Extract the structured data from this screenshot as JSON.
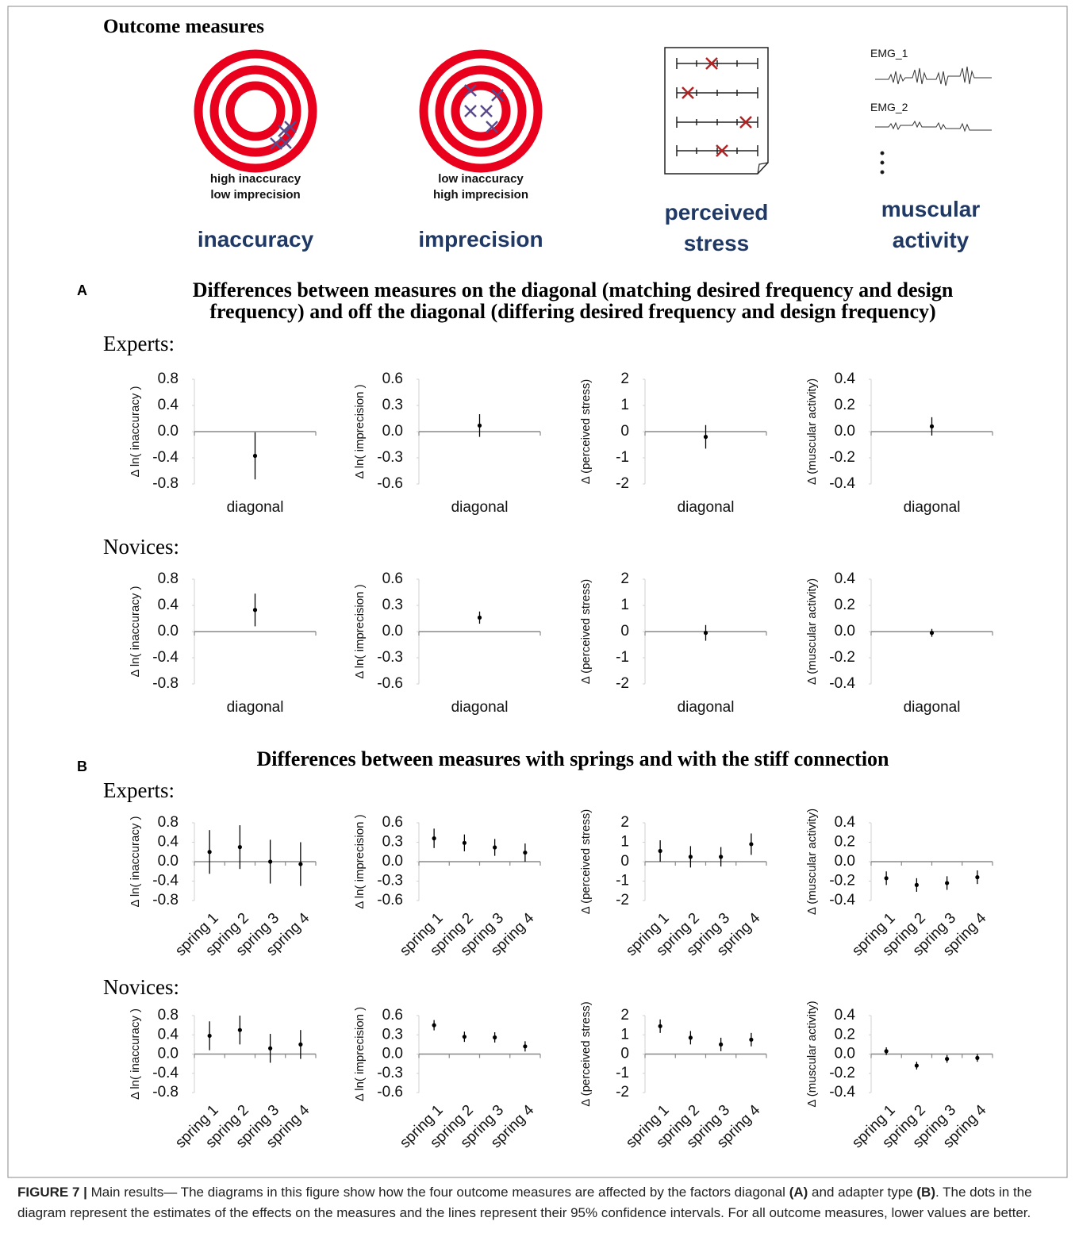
{
  "figure": {
    "outcome": {
      "title": "Outcome measures",
      "notes": [
        [
          "high inaccuracy",
          "low imprecision"
        ],
        [
          "low inaccuracy",
          "high imprecision"
        ]
      ],
      "labels": [
        "inaccuracy",
        "imprecision",
        "perceived stress",
        "muscular activity"
      ],
      "emg": [
        "EMG_1",
        "EMG_2"
      ]
    },
    "sections": [
      {
        "letter": "A",
        "title": "Differences between measures on the diagonal (matching desired frequency and design frequency) and off the diagonal (differing desired frequency and design frequency)",
        "groups": [
          "Experts:",
          "Novices:"
        ]
      },
      {
        "letter": "B",
        "title": "Differences between measures with springs and with the stiff connection",
        "groups": [
          "Experts:",
          "Novices:"
        ]
      }
    ],
    "caption": [
      "FIGURE 7 |",
      "Main results— The diagrams in this figure show how the four outcome measures are affected by the factors diagonal",
      "(A)",
      "and adapter type",
      "(B)",
      ". The dots in the diagram represent the estimates of the effects on the measures and the lines represent their 95% confidence intervals. For all outcome measures, lower values are better."
    ]
  },
  "chart_data": [
    {
      "type": "errorbar",
      "ylabel": "Δ ln( inaccuracy )",
      "categories": [
        "diagonal"
      ],
      "values": [
        -0.37
      ],
      "errors": [
        0.36
      ],
      "color": "#000000",
      "ylim": [
        -0.8,
        0.8
      ],
      "yticks": [
        -0.8,
        -0.4,
        {
          "value": 0,
          "label": "0.0"
        },
        0.4,
        0.8
      ]
    },
    {
      "type": "errorbar",
      "ylabel": "Δ ln( imprecision )",
      "categories": [
        "diagonal"
      ],
      "values": [
        0.07
      ],
      "errors": [
        0.13
      ],
      "color": "#000000",
      "ylim": [
        -0.6,
        0.6
      ],
      "yticks": [
        -0.6,
        -0.3,
        {
          "value": 0,
          "label": "0.0"
        },
        0.3,
        0.6
      ]
    },
    {
      "type": "errorbar",
      "ylabel": "Δ (perceived stress)",
      "categories": [
        "diagonal"
      ],
      "values": [
        -0.2
      ],
      "errors": [
        0.45
      ],
      "color": "#000000",
      "ylim": [
        -2,
        2
      ],
      "yticks": [
        -2,
        -1,
        0,
        1,
        2
      ]
    },
    {
      "type": "errorbar",
      "ylabel": "Δ (muscular activity)",
      "categories": [
        "diagonal"
      ],
      "values": [
        0.04
      ],
      "errors": [
        0.07
      ],
      "color": "#000000",
      "ylim": [
        -0.4,
        0.4
      ],
      "yticks": [
        -0.4,
        -0.2,
        {
          "value": 0,
          "label": "0.0"
        },
        0.2,
        0.4
      ]
    },
    {
      "type": "errorbar",
      "ylabel": "Δ ln( inaccuracy )",
      "categories": [
        "diagonal"
      ],
      "values": [
        0.33
      ],
      "errors": [
        0.25
      ],
      "color": "#000000",
      "ylim": [
        -0.8,
        0.8
      ],
      "yticks": [
        -0.8,
        -0.4,
        {
          "value": 0,
          "label": "0.0"
        },
        0.4,
        0.8
      ]
    },
    {
      "type": "errorbar",
      "ylabel": "Δ ln( imprecision )",
      "categories": [
        "diagonal"
      ],
      "values": [
        0.16
      ],
      "errors": [
        0.07
      ],
      "color": "#000000",
      "ylim": [
        -0.6,
        0.6
      ],
      "yticks": [
        -0.6,
        -0.3,
        {
          "value": 0,
          "label": "0.0"
        },
        0.3,
        0.6
      ]
    },
    {
      "type": "errorbar",
      "ylabel": "Δ (perceived stress)",
      "categories": [
        "diagonal"
      ],
      "values": [
        -0.05
      ],
      "errors": [
        0.3
      ],
      "color": "#000000",
      "ylim": [
        -2,
        2
      ],
      "yticks": [
        -2,
        -1,
        0,
        1,
        2
      ]
    },
    {
      "type": "errorbar",
      "ylabel": "Δ (muscular activity)",
      "categories": [
        "diagonal"
      ],
      "values": [
        -0.01
      ],
      "errors": [
        0.03
      ],
      "color": "#000000",
      "ylim": [
        -0.4,
        0.4
      ],
      "yticks": [
        -0.4,
        -0.2,
        {
          "value": 0,
          "label": "0.0"
        },
        0.2,
        0.4
      ]
    },
    {
      "type": "errorbar",
      "ylabel": "Δ ln( inaccuracy )",
      "categories": [
        "spring 1",
        "spring 2",
        "spring 3",
        "spring 4"
      ],
      "values": [
        0.2,
        0.3,
        0.0,
        -0.05
      ],
      "errors": [
        0.45,
        0.45,
        0.45,
        0.45
      ],
      "color": "#000000",
      "ylim": [
        -0.8,
        0.8
      ],
      "yticks": [
        -0.8,
        -0.4,
        {
          "value": 0,
          "label": "0.0"
        },
        0.4,
        0.8
      ]
    },
    {
      "type": "errorbar",
      "ylabel": "Δ ln( imprecision )",
      "categories": [
        "spring 1",
        "spring 2",
        "spring 3",
        "spring 4"
      ],
      "values": [
        0.36,
        0.29,
        0.22,
        0.14
      ],
      "errors": [
        0.15,
        0.13,
        0.13,
        0.14
      ],
      "color": "#000000",
      "ylim": [
        -0.6,
        0.6
      ],
      "yticks": [
        -0.6,
        -0.3,
        {
          "value": 0,
          "label": "0.0"
        },
        0.3,
        0.6
      ]
    },
    {
      "type": "errorbar",
      "ylabel": "Δ (perceived stress)",
      "categories": [
        "spring 1",
        "spring 2",
        "spring 3",
        "spring 4"
      ],
      "values": [
        0.55,
        0.25,
        0.25,
        0.9
      ],
      "errors": [
        0.55,
        0.55,
        0.5,
        0.55
      ],
      "color": "#000000",
      "ylim": [
        -2,
        2
      ],
      "yticks": [
        -2,
        -1,
        0,
        1,
        2
      ]
    },
    {
      "type": "errorbar",
      "ylabel": "Δ (muscular activity)",
      "categories": [
        "spring 1",
        "spring 2",
        "spring 3",
        "spring 4"
      ],
      "values": [
        -0.17,
        -0.24,
        -0.22,
        -0.16
      ],
      "errors": [
        0.07,
        0.07,
        0.07,
        0.07
      ],
      "color": "#000000",
      "ylim": [
        -0.4,
        0.4
      ],
      "yticks": [
        -0.4,
        -0.2,
        {
          "value": 0,
          "label": "0.0"
        },
        0.2,
        0.4
      ]
    },
    {
      "type": "errorbar",
      "ylabel": "Δ ln( inaccuracy )",
      "categories": [
        "spring 1",
        "spring 2",
        "spring 3",
        "spring 4"
      ],
      "values": [
        0.38,
        0.5,
        0.12,
        0.2
      ],
      "errors": [
        0.3,
        0.3,
        0.3,
        0.3
      ],
      "color": "#000000",
      "ylim": [
        -0.8,
        0.8
      ],
      "yticks": [
        -0.8,
        -0.4,
        {
          "value": 0,
          "label": "0.0"
        },
        0.4,
        0.8
      ]
    },
    {
      "type": "errorbar",
      "ylabel": "Δ ln( imprecision )",
      "categories": [
        "spring 1",
        "spring 2",
        "spring 3",
        "spring 4"
      ],
      "values": [
        0.45,
        0.27,
        0.26,
        0.12
      ],
      "errors": [
        0.08,
        0.08,
        0.08,
        0.08
      ],
      "color": "#000000",
      "ylim": [
        -0.6,
        0.6
      ],
      "yticks": [
        -0.6,
        -0.3,
        {
          "value": 0,
          "label": "0.0"
        },
        0.3,
        0.6
      ]
    },
    {
      "type": "errorbar",
      "ylabel": "Δ (perceived stress)",
      "categories": [
        "spring 1",
        "spring 2",
        "spring 3",
        "spring 4"
      ],
      "values": [
        1.45,
        0.85,
        0.5,
        0.75
      ],
      "errors": [
        0.35,
        0.35,
        0.35,
        0.35
      ],
      "color": "#000000",
      "ylim": [
        -2,
        2
      ],
      "yticks": [
        -2,
        -1,
        0,
        1,
        2
      ]
    },
    {
      "type": "errorbar",
      "ylabel": "Δ (muscular activity)",
      "categories": [
        "spring 1",
        "spring 2",
        "spring 3",
        "spring 4"
      ],
      "values": [
        0.03,
        -0.12,
        -0.05,
        -0.04
      ],
      "errors": [
        0.04,
        0.04,
        0.04,
        0.04
      ],
      "color": "#000000",
      "ylim": [
        -0.4,
        0.4
      ],
      "yticks": [
        -0.4,
        -0.2,
        {
          "value": 0,
          "label": "0.0"
        },
        0.2,
        0.4
      ]
    }
  ]
}
